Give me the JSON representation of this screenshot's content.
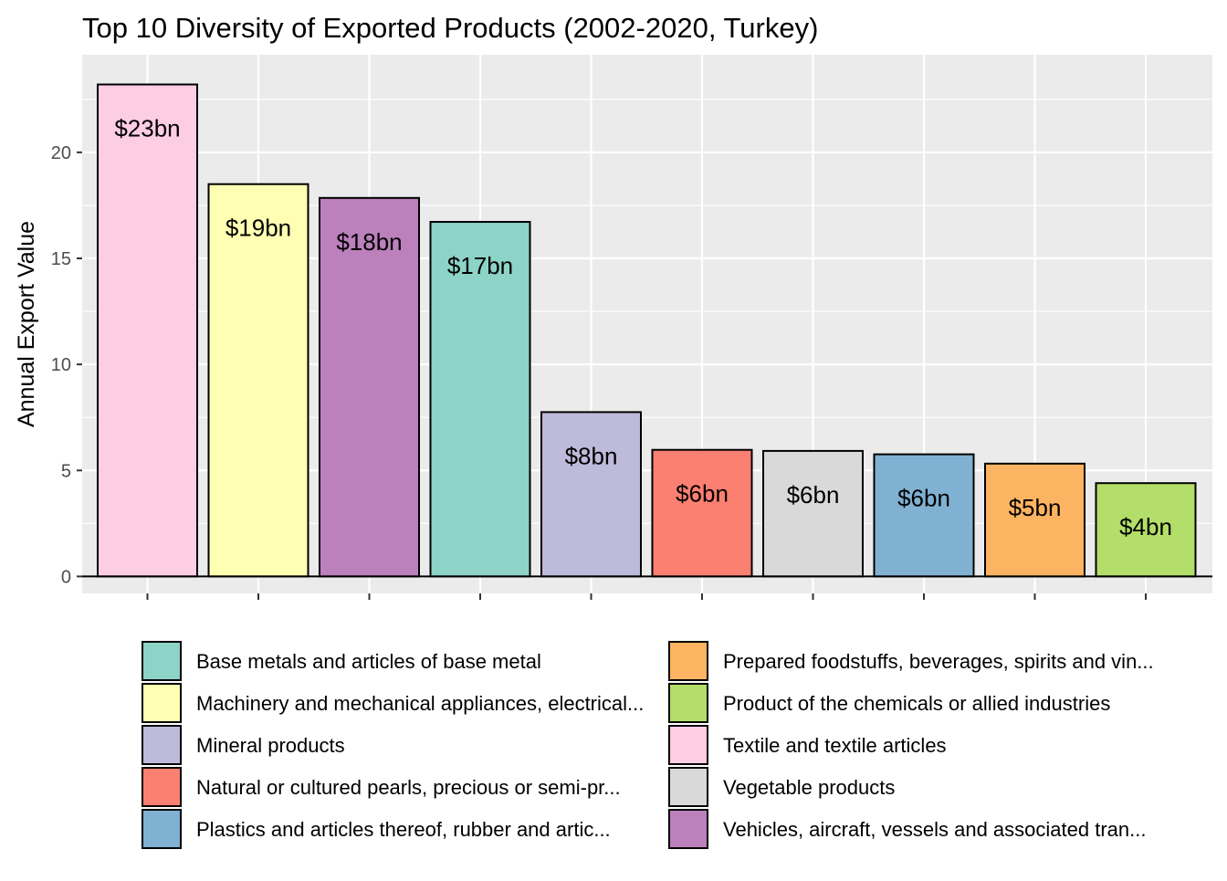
{
  "chart_data": {
    "type": "bar",
    "title": "Top 10 Diversity of Exported Products (2002-2020, Turkey)",
    "xlabel": "",
    "ylabel": "Annual Export Value",
    "ylim": [
      -0.8,
      24.6
    ],
    "yticks": [
      0,
      5,
      10,
      15,
      20
    ],
    "grid": true,
    "legend_position": "bottom",
    "bars": [
      {
        "category": "Textile and textile articles",
        "value": 23.2,
        "label": "$23bn",
        "color": "#FCCDE5"
      },
      {
        "category": "Machinery and mechanical appliances, electrical...",
        "value": 18.5,
        "label": "$19bn",
        "color": "#FFFFB3"
      },
      {
        "category": "Vehicles, aircraft, vessels and associated tran...",
        "value": 17.85,
        "label": "$18bn",
        "color": "#BC80BD"
      },
      {
        "category": "Base metals and articles of base metal",
        "value": 16.72,
        "label": "$17bn",
        "color": "#8DD3C7"
      },
      {
        "category": "Mineral products",
        "value": 7.75,
        "label": "$8bn",
        "color": "#BEBADA"
      },
      {
        "category": "Natural or cultured pearls, precious or semi-pr...",
        "value": 5.97,
        "label": "$6bn",
        "color": "#FB8072"
      },
      {
        "category": "Vegetable products",
        "value": 5.92,
        "label": "$6bn",
        "color": "#D9D9D9"
      },
      {
        "category": "Plastics and articles thereof, rubber and artic...",
        "value": 5.76,
        "label": "$6bn",
        "color": "#80B1D3"
      },
      {
        "category": "Prepared foodstuffs, beverages, spirits and vin...",
        "value": 5.32,
        "label": "$5bn",
        "color": "#FDB462"
      },
      {
        "category": "Product of the chemicals or allied industries",
        "value": 4.4,
        "label": "$4bn",
        "color": "#B3DE69"
      }
    ],
    "legend": [
      {
        "label": "Base metals and articles of base metal",
        "color": "#8DD3C7"
      },
      {
        "label": "Machinery and mechanical appliances, electrical...",
        "color": "#FFFFB3"
      },
      {
        "label": "Mineral products",
        "color": "#BEBADA"
      },
      {
        "label": "Natural or cultured pearls, precious or semi-pr...",
        "color": "#FB8072"
      },
      {
        "label": "Plastics and articles thereof, rubber and artic...",
        "color": "#80B1D3"
      },
      {
        "label": "Prepared foodstuffs, beverages, spirits and vin...",
        "color": "#FDB462"
      },
      {
        "label": "Product of the chemicals or allied industries",
        "color": "#B3DE69"
      },
      {
        "label": "Textile and textile articles",
        "color": "#FCCDE5"
      },
      {
        "label": "Vegetable products",
        "color": "#D9D9D9"
      },
      {
        "label": "Vehicles, aircraft, vessels and associated tran...",
        "color": "#BC80BD"
      }
    ],
    "panel_background": "#EBEBEB",
    "grid_color": "#FFFFFF"
  }
}
